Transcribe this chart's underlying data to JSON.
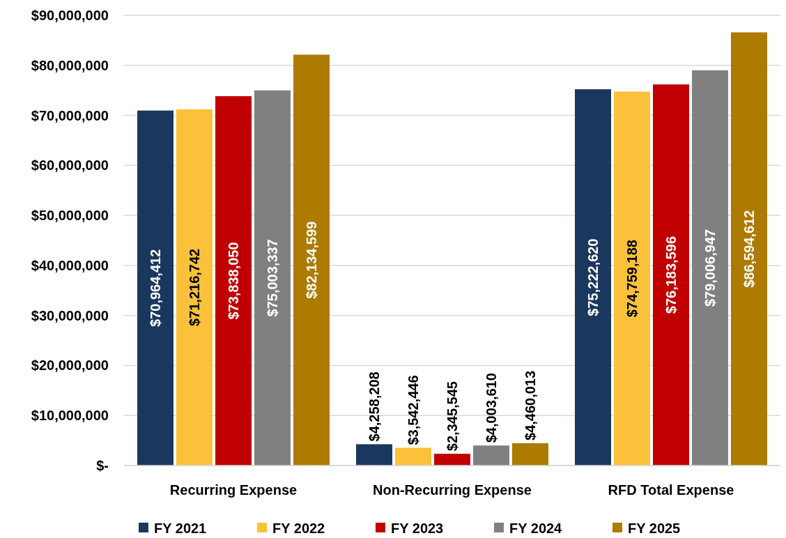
{
  "chart_data": {
    "type": "bar",
    "categories": [
      "Recurring Expense",
      "Non-Recurring Expense",
      "RFD Total Expense"
    ],
    "series": [
      {
        "name": "FY 2021",
        "color": "#1a375e",
        "values": [
          70964412,
          4258208,
          75222620
        ],
        "value_labels": [
          "$70,964,412",
          "$4,258,208",
          "$75,222,620"
        ]
      },
      {
        "name": "FY 2022",
        "color": "#fbc13a",
        "values": [
          71216742,
          3542446,
          74759188
        ],
        "value_labels": [
          "$71,216,742",
          "$3,542,446",
          "$74,759,188"
        ]
      },
      {
        "name": "FY 2023",
        "color": "#c00000",
        "values": [
          73838050,
          2345545,
          76183596
        ],
        "value_labels": [
          "$73,838,050",
          "$2,345,545",
          "$76,183,596"
        ]
      },
      {
        "name": "FY 2024",
        "color": "#808080",
        "values": [
          75003337,
          4003610,
          79006947
        ],
        "value_labels": [
          "$75,003,337",
          "$4,003,610",
          "$79,006,947"
        ]
      },
      {
        "name": "FY 2025",
        "color": "#ad7a02",
        "values": [
          82134599,
          4460013,
          86594612
        ],
        "value_labels": [
          "$82,134,599",
          "$4,460,013",
          "$86,594,612"
        ]
      }
    ],
    "ylim": [
      0,
      90000000
    ],
    "yticks": [
      {
        "value": 0,
        "label": "$-"
      },
      {
        "value": 10000000,
        "label": "$10,000,000"
      },
      {
        "value": 20000000,
        "label": "$20,000,000"
      },
      {
        "value": 30000000,
        "label": "$30,000,000"
      },
      {
        "value": 40000000,
        "label": "$40,000,000"
      },
      {
        "value": 50000000,
        "label": "$50,000,000"
      },
      {
        "value": 60000000,
        "label": "$60,000,000"
      },
      {
        "value": 70000000,
        "label": "$70,000,000"
      },
      {
        "value": 80000000,
        "label": "$80,000,000"
      },
      {
        "value": 90000000,
        "label": "$90,000,000"
      }
    ],
    "grid": "y",
    "legend": "bottom"
  }
}
